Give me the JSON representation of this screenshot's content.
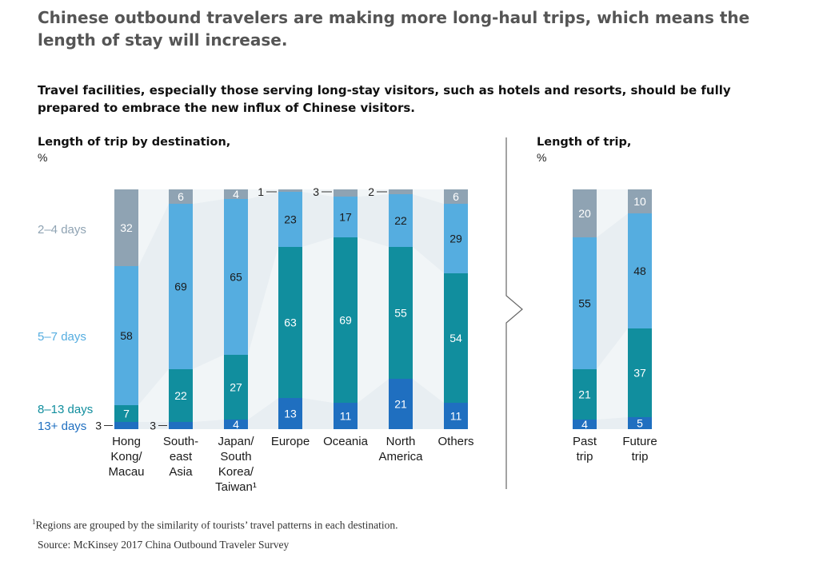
{
  "title": "Chinese outbound travelers are making more long-haul trips, which means the length of stay will increase.",
  "subtitle": "Travel facilities, especially those serving long-stay visitors, such as hotels and resorts, should be fully prepared to embrace the new influx of Chinese visitors.",
  "footnote_marker": "1",
  "footnote": "Regions are grouped by the similarity of tourists’ travel patterns in each destination.",
  "source": "Source: McKinsey 2017 China Outbound Traveler Survey",
  "colors": {
    "2-4 days": "#8fa3b3",
    "5-7 days": "#55ade0",
    "8-13 days": "#118e9e",
    "13+ days": "#1f6fc0",
    "band": "#e6ecf1",
    "label_2-4": "#8fa3b3",
    "label_5-7": "#55ade0",
    "label_8-13": "#118e9e",
    "label_13+": "#1f6fc0"
  },
  "chart_data": [
    {
      "type": "bar",
      "stacked": true,
      "title": "Length of trip by destination,",
      "unit": "%",
      "categories": [
        [
          "Hong",
          "Kong/",
          "Macau"
        ],
        [
          "South-",
          "east",
          "Asia"
        ],
        [
          "Japan/",
          "South",
          "Korea/",
          "Taiwan¹"
        ],
        [
          "Europe"
        ],
        [
          "Oceania"
        ],
        [
          "North",
          "America"
        ],
        [
          "Others"
        ]
      ],
      "series": [
        {
          "name": "13+ days",
          "values": [
            3,
            3,
            4,
            13,
            11,
            21,
            11
          ]
        },
        {
          "name": "8–13 days",
          "values": [
            7,
            22,
            27,
            63,
            69,
            55,
            54
          ]
        },
        {
          "name": "5–7 days",
          "values": [
            58,
            69,
            65,
            23,
            17,
            22,
            29
          ]
        },
        {
          "name": "2–4 days",
          "values": [
            32,
            6,
            4,
            1,
            3,
            2,
            6
          ]
        }
      ],
      "ylim": [
        0,
        100
      ]
    },
    {
      "type": "bar",
      "stacked": true,
      "title": "Length of trip,",
      "unit": "%",
      "categories": [
        [
          "Past",
          "trip"
        ],
        [
          "Future",
          "trip"
        ]
      ],
      "series": [
        {
          "name": "13+ days",
          "values": [
            4,
            5
          ]
        },
        {
          "name": "8–13 days",
          "values": [
            21,
            37
          ]
        },
        {
          "name": "5–7 days",
          "values": [
            55,
            48
          ]
        },
        {
          "name": "2–4 days",
          "values": [
            20,
            10
          ]
        }
      ],
      "ylim": [
        0,
        100
      ]
    }
  ]
}
